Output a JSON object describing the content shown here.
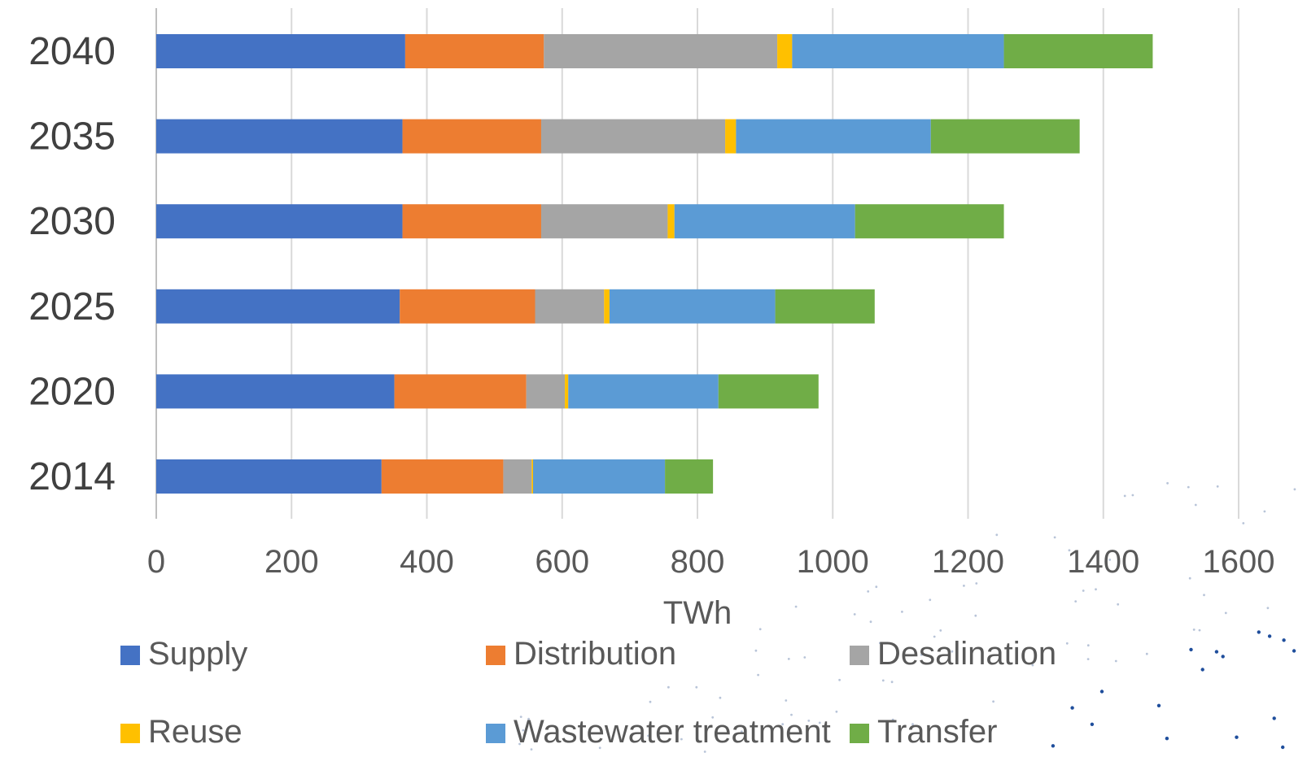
{
  "chart_data": {
    "type": "bar",
    "orientation": "horizontal",
    "stacked": true,
    "categories": [
      "2040",
      "2035",
      "2030",
      "2025",
      "2020",
      "2014"
    ],
    "series": [
      {
        "name": "Supply",
        "color": "#4472C4",
        "values": [
          368,
          364,
          364,
          360,
          352,
          333
        ]
      },
      {
        "name": "Distribution",
        "color": "#ED7D31",
        "values": [
          205,
          205,
          205,
          200,
          195,
          180
        ]
      },
      {
        "name": "Desalination",
        "color": "#A5A5A5",
        "values": [
          345,
          272,
          187,
          102,
          57,
          42
        ]
      },
      {
        "name": "Reuse",
        "color": "#FFC000",
        "values": [
          22,
          16,
          10,
          8,
          5,
          2
        ]
      },
      {
        "name": "Wastewater treatment",
        "color": "#5B9BD5",
        "values": [
          313,
          288,
          267,
          245,
          222,
          195
        ]
      },
      {
        "name": "Transfer",
        "color": "#70AD47",
        "values": [
          220,
          220,
          220,
          147,
          148,
          71
        ]
      }
    ],
    "xlabel": "TWh",
    "ylabel": "",
    "xlim": [
      0,
      1600
    ],
    "xticks": [
      0,
      200,
      400,
      600,
      800,
      1000,
      1200,
      1400,
      1600
    ],
    "grid": true,
    "legend_position": "bottom"
  }
}
